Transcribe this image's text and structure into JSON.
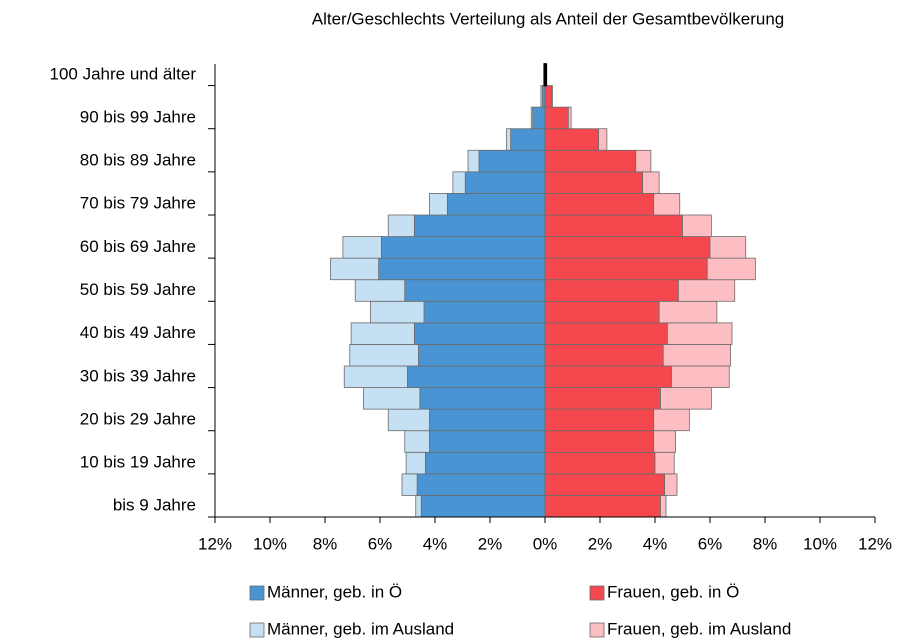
{
  "chart_data": {
    "type": "pyramid",
    "stacked": true,
    "title": "Alter/Geschlechts Verteilung als Anteil der Gesamtbevölkerung",
    "categories": [
      "bis 9 Jahre",
      null,
      "10 bis 19 Jahre",
      null,
      "20 bis 29 Jahre",
      null,
      "30 bis 39 Jahre",
      null,
      "40 bis 49 Jahre",
      null,
      "50 bis 59 Jahre",
      null,
      "60 bis 69 Jahre",
      null,
      "70 bis 79 Jahre",
      null,
      "80 bis 89 Jahre",
      null,
      "90 bis 99 Jahre",
      null,
      "100 Jahre und älter"
    ],
    "series": [
      {
        "name": "Männer, geb. in Ö",
        "color": "#4a94d4",
        "values": [
          -4.5,
          -4.65,
          -4.35,
          -4.2,
          -4.2,
          -4.55,
          -5.0,
          -4.6,
          -4.75,
          -4.4,
          -5.1,
          -6.05,
          -5.95,
          -4.75,
          -3.55,
          -2.9,
          -2.4,
          -1.25,
          -0.45,
          -0.1,
          -0.02
        ]
      },
      {
        "name": "Männer, geb. im Ausland",
        "color": "#c5dff3",
        "values": [
          -0.2,
          -0.55,
          -0.7,
          -0.9,
          -1.5,
          -2.05,
          -2.3,
          -2.5,
          -2.3,
          -1.95,
          -1.8,
          -1.75,
          -1.4,
          -0.95,
          -0.65,
          -0.45,
          -0.4,
          -0.15,
          -0.05,
          -0.05,
          -0.01
        ]
      },
      {
        "name": "Frauen, geb. in Ö",
        "color": "#f5484e",
        "values": [
          4.2,
          4.35,
          4.0,
          3.95,
          3.95,
          4.2,
          4.6,
          4.3,
          4.45,
          4.15,
          4.85,
          5.9,
          6.0,
          5.0,
          3.95,
          3.55,
          3.3,
          1.95,
          0.85,
          0.25,
          0.05
        ]
      },
      {
        "name": "Frauen, geb. im Ausland",
        "color": "#fcbec2",
        "values": [
          0.2,
          0.45,
          0.7,
          0.8,
          1.3,
          1.85,
          2.1,
          2.45,
          2.35,
          2.1,
          2.05,
          1.75,
          1.3,
          1.05,
          0.95,
          0.6,
          0.55,
          0.3,
          0.1,
          0.02,
          0.0
        ]
      }
    ],
    "xlim": [
      -12,
      12
    ],
    "xticks": [
      {
        "value": -12,
        "label": "12%"
      },
      {
        "value": -10,
        "label": "10%"
      },
      {
        "value": -8,
        "label": "8%"
      },
      {
        "value": -6,
        "label": "6%"
      },
      {
        "value": -4,
        "label": "4%"
      },
      {
        "value": -2,
        "label": "2%"
      },
      {
        "value": 0,
        "label": "0%"
      },
      {
        "value": 2,
        "label": "2%"
      },
      {
        "value": 4,
        "label": "4%"
      },
      {
        "value": 6,
        "label": "6%"
      },
      {
        "value": 8,
        "label": "8%"
      },
      {
        "value": 10,
        "label": "10%"
      },
      {
        "value": 12,
        "label": "12%"
      }
    ]
  }
}
